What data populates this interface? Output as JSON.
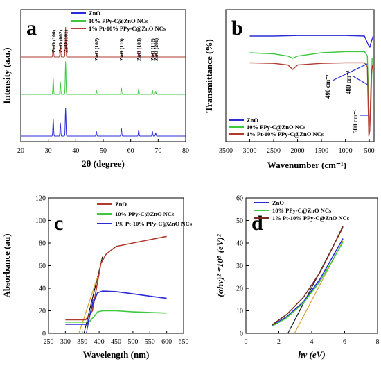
{
  "colors": {
    "zno": "#2b2bd6",
    "ppy": "#3ec83e",
    "pt": "#b03a2e",
    "orange": "#d8a030",
    "black": "#111111"
  },
  "chart_data": [
    {
      "id": "a",
      "type": "line",
      "panel_label": "a",
      "xlabel": "2θ (degree)",
      "ylabel": "Intensity (a.u.)",
      "xlim": [
        20,
        80
      ],
      "xticks": [
        20,
        30,
        40,
        50,
        60,
        70,
        80
      ],
      "legend": [
        "ZnO",
        "10% PPy-C@ZnO NCs",
        "1% Pt-10% PPy-C@ZnO NCs"
      ],
      "peaks": [
        {
          "x": 31.8,
          "label": "ZnO (100)"
        },
        {
          "x": 34.4,
          "label": "ZnO (002)"
        },
        {
          "x": 36.3,
          "label": "ZnO (101)"
        },
        {
          "x": 47.5,
          "label": "ZnO (102)"
        },
        {
          "x": 56.6,
          "label": "ZnO (110)"
        },
        {
          "x": 62.9,
          "label": "ZnO (103)"
        },
        {
          "x": 67.9,
          "label": "ZnO (112)"
        },
        {
          "x": 69.1,
          "label": "ZnO (201)"
        }
      ],
      "series": [
        {
          "name": "ZnO",
          "color": "#2b2bd6",
          "offset": 0,
          "heights": [
            0.55,
            0.42,
            0.9,
            0.15,
            0.25,
            0.2,
            0.15,
            0.1
          ]
        },
        {
          "name": "10% PPy-C@ZnO NCs",
          "color": "#3ec83e",
          "offset": 1,
          "heights": [
            0.5,
            0.4,
            1.05,
            0.14,
            0.22,
            0.18,
            0.14,
            0.1
          ]
        },
        {
          "name": "1% Pt-10% PPy-C@ZnO NCs",
          "color": "#b03a2e",
          "offset": 2,
          "heights": [
            0.4,
            0.38,
            0.95,
            0.13,
            0.2,
            0.16,
            0.13,
            0.1
          ]
        }
      ]
    },
    {
      "id": "b",
      "type": "line",
      "panel_label": "b",
      "xlabel": "Wavenumber (cm⁻¹)",
      "ylabel": "Transmittance (%)",
      "xlim": [
        3500,
        400
      ],
      "xticks": [
        3500,
        3000,
        2500,
        2000,
        1500,
        1000,
        500
      ],
      "legend": [
        "ZnO",
        "10% PPy-C@ZnO NCs",
        "1% Pt-10% PPy-C@ZnO NCs"
      ],
      "annotations": [
        {
          "label": "480 cm⁻¹",
          "x": 480
        },
        {
          "label": "490 cm⁻¹",
          "x": 490
        },
        {
          "label": "500 cm⁻¹",
          "x": 500
        }
      ],
      "series": [
        {
          "name": "ZnO",
          "color": "#2b2bd6",
          "points": [
            [
              3000,
              0.9
            ],
            [
              2500,
              0.9
            ],
            [
              2000,
              0.905
            ],
            [
              1500,
              0.905
            ],
            [
              1000,
              0.905
            ],
            [
              600,
              0.9
            ],
            [
              520,
              0.82
            ],
            [
              490,
              0.8
            ],
            [
              450,
              0.86
            ],
            [
              420,
              0.9
            ]
          ]
        },
        {
          "name": "10% PPy-C@ZnO NCs",
          "color": "#3ec83e",
          "points": [
            [
              3000,
              0.75
            ],
            [
              2500,
              0.74
            ],
            [
              2200,
              0.72
            ],
            [
              2100,
              0.7
            ],
            [
              2000,
              0.72
            ],
            [
              1500,
              0.75
            ],
            [
              1000,
              0.76
            ],
            [
              600,
              0.76
            ],
            [
              540,
              0.72
            ],
            [
              500,
              0.1
            ],
            [
              470,
              0.2
            ],
            [
              440,
              0.7
            ]
          ]
        },
        {
          "name": "1% Pt-10% PPy-C@ZnO NCs",
          "color": "#b03a2e",
          "points": [
            [
              3000,
              0.66
            ],
            [
              2500,
              0.655
            ],
            [
              2200,
              0.64
            ],
            [
              2100,
              0.6
            ],
            [
              2000,
              0.64
            ],
            [
              1500,
              0.655
            ],
            [
              1000,
              0.66
            ],
            [
              600,
              0.66
            ],
            [
              540,
              0.62
            ],
            [
              510,
              0.0
            ],
            [
              490,
              0.05
            ],
            [
              460,
              0.55
            ],
            [
              430,
              0.64
            ]
          ]
        }
      ]
    },
    {
      "id": "c",
      "type": "line",
      "panel_label": "c",
      "xlabel": "Wavelength (nm)",
      "ylabel": "Absorbance (au)",
      "xlim": [
        250,
        650
      ],
      "ylim": [
        0,
        120
      ],
      "xticks": [
        250,
        300,
        350,
        400,
        450,
        500,
        550,
        600,
        650
      ],
      "yticks": [
        0,
        20,
        40,
        60,
        80,
        100,
        120
      ],
      "legend": [
        "ZnO",
        "10% PPy-C@ZnO NCs",
        "1% Pt-10% PPy-C@ZnO NCs"
      ],
      "series": [
        {
          "name": "ZnO",
          "color": "#b03a2e",
          "points": [
            [
              300,
              12
            ],
            [
              360,
              12
            ],
            [
              380,
              20
            ],
            [
              395,
              45
            ],
            [
              405,
              62
            ],
            [
              420,
              70
            ],
            [
              450,
              77
            ],
            [
              500,
              80
            ],
            [
              550,
              83
            ],
            [
              600,
              86
            ]
          ]
        },
        {
          "name": "10% PPy-C@ZnO NCs",
          "color": "#3ec83e",
          "points": [
            [
              300,
              10
            ],
            [
              370,
              10
            ],
            [
              385,
              15
            ],
            [
              395,
              19
            ],
            [
              410,
              20
            ],
            [
              450,
              20
            ],
            [
              500,
              19
            ],
            [
              550,
              18.5
            ],
            [
              600,
              18
            ]
          ]
        },
        {
          "name": "1% Pt-10% PPy-C@ZnO NCs",
          "color": "#2b2bd6",
          "points": [
            [
              300,
              8
            ],
            [
              365,
              8
            ],
            [
              380,
              25
            ],
            [
              395,
              36
            ],
            [
              410,
              37.5
            ],
            [
              450,
              37
            ],
            [
              500,
              35
            ],
            [
              550,
              33
            ],
            [
              600,
              31
            ]
          ]
        }
      ],
      "tangents": [
        {
          "color": "#111111",
          "points": [
            [
              355,
              0
            ],
            [
              410,
              68
            ]
          ]
        },
        {
          "color": "#d8a030",
          "points": [
            [
              340,
              0
            ],
            [
              395,
              50
            ]
          ]
        },
        {
          "color": "#2b2bd6",
          "points": [
            [
              362,
              0
            ],
            [
              382,
              30
            ]
          ]
        }
      ]
    },
    {
      "id": "d",
      "type": "line",
      "panel_label": "d",
      "xlabel": "hv (eV)",
      "ylabel": "(αhv)² *10⁵ (eV)²",
      "xlim": [
        0,
        8
      ],
      "ylim": [
        0,
        60
      ],
      "xticks": [
        0,
        2,
        4,
        6,
        8
      ],
      "yticks": [
        0,
        10,
        20,
        30,
        40,
        50,
        60
      ],
      "legend": [
        "ZnO",
        "10% PPy-C@ZnO NCs",
        "1% Pt-10% PPy-C@ZnO NCs"
      ],
      "series": [
        {
          "name": "ZnO",
          "color": "#2b2bd6",
          "points": [
            [
              1.6,
              3.5
            ],
            [
              2.5,
              7.5
            ],
            [
              3.5,
              14
            ],
            [
              4.5,
              24
            ],
            [
              5.2,
              33
            ],
            [
              5.9,
              42
            ]
          ]
        },
        {
          "name": "10% PPy-C@ZnO NCs",
          "color": "#3ec83e",
          "points": [
            [
              1.6,
              3.2
            ],
            [
              2.5,
              7
            ],
            [
              3.5,
              13.5
            ],
            [
              4.5,
              23
            ],
            [
              5.2,
              31.5
            ],
            [
              5.9,
              40.5
            ]
          ]
        },
        {
          "name": "1% Pt-10% PPy-C@ZnO NCs",
          "color": "#7a2a20",
          "points": [
            [
              1.6,
              3.8
            ],
            [
              2.5,
              8.5
            ],
            [
              3.5,
              16
            ],
            [
              4.5,
              27
            ],
            [
              5.2,
              37
            ],
            [
              5.9,
              47.5
            ]
          ]
        }
      ],
      "tangents": [
        {
          "color": "#111111",
          "points": [
            [
              2.55,
              0
            ],
            [
              5.9,
              47
            ]
          ]
        },
        {
          "color": "#d8a030",
          "points": [
            [
              2.95,
              0
            ],
            [
              5.9,
              41
            ]
          ]
        }
      ]
    }
  ]
}
